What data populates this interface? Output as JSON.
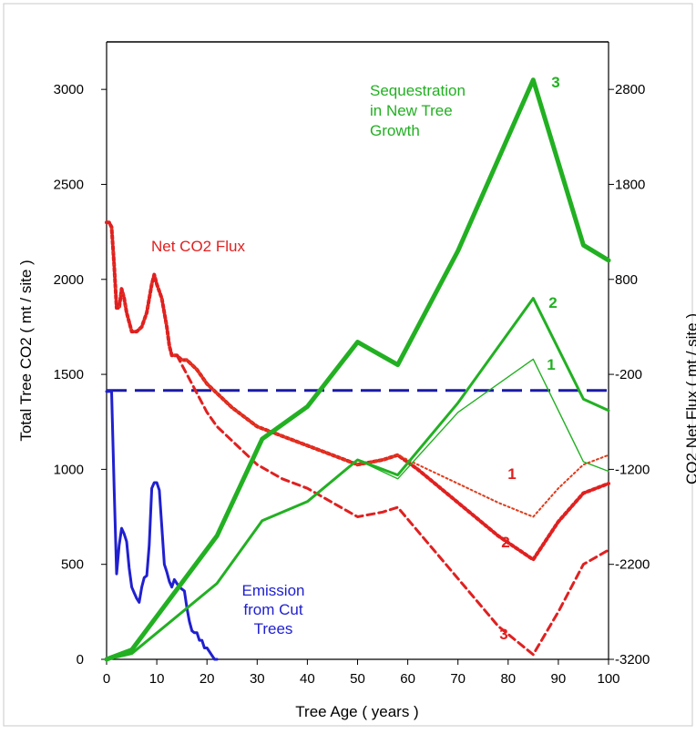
{
  "chart_data": {
    "type": "line",
    "xlabel": "Tree Age ( years )",
    "ylabel_left": "Total Tree CO2  ( mt / site )",
    "ylabel_right": "CO2 Net Flux  ( mt / site )",
    "x_ticks": [
      0,
      10,
      20,
      30,
      40,
      50,
      60,
      70,
      80,
      90,
      100
    ],
    "xlim": [
      0,
      100
    ],
    "ylim_left": [
      0,
      3250
    ],
    "y_ticks_left": [
      0,
      500,
      1000,
      1500,
      2000,
      2500,
      3000
    ],
    "ylim_right": [
      -3200,
      3300
    ],
    "y_ticks_right": [
      -3200,
      -2200,
      -1200,
      -200,
      800,
      1800,
      2800
    ],
    "reference_line": {
      "axis": "left",
      "y": 1415,
      "color": "#1a1aa8",
      "style": "dashed"
    },
    "annotations": [
      {
        "text_lines": [
          "Sequestration",
          "in New Tree",
          "Growth"
        ],
        "color": "#22b022"
      },
      {
        "text_lines": [
          "Net CO2 Flux"
        ],
        "color": "#e02020"
      },
      {
        "text_lines": [
          "Emission",
          "from Cut",
          "Trees"
        ],
        "color": "#2020d0"
      }
    ],
    "series": [
      {
        "label": "3",
        "axis": "left",
        "color": "#22b022",
        "style": "solid-thick",
        "x": [
          0,
          5,
          22,
          31,
          40,
          50,
          58,
          70,
          85,
          95,
          100
        ],
        "y": [
          0,
          50,
          650,
          1160,
          1330,
          1670,
          1550,
          2150,
          3050,
          2180,
          2100
        ]
      },
      {
        "label": "2",
        "axis": "left",
        "color": "#22b022",
        "style": "solid",
        "x": [
          0,
          5,
          22,
          31,
          40,
          50,
          58,
          70,
          85,
          95,
          100
        ],
        "y": [
          0,
          30,
          400,
          730,
          830,
          1050,
          970,
          1350,
          1900,
          1370,
          1310
        ]
      },
      {
        "label": "1",
        "axis": "left",
        "color": "#22b022",
        "style": "solid-thin",
        "x": [
          0,
          5,
          22,
          31,
          40,
          50,
          58,
          70,
          85,
          95,
          100
        ],
        "y": [
          0,
          30,
          400,
          730,
          830,
          1050,
          950,
          1300,
          1580,
          1040,
          990
        ]
      },
      {
        "label": "Emission from Cut Trees",
        "axis": "left",
        "color": "#2020d0",
        "style": "solid",
        "x": [
          0,
          0.5,
          1,
          1.5,
          2,
          2.5,
          3,
          3.5,
          4,
          4.5,
          5,
          5.5,
          6,
          6.5,
          7,
          7.5,
          8,
          8.5,
          9,
          9.5,
          10,
          10.5,
          11,
          11.5,
          12,
          12.5,
          13,
          13.5,
          14,
          14.5,
          15,
          15.5,
          16,
          16.5,
          17,
          17.5,
          18,
          18.5,
          19,
          19.5,
          20,
          20.5,
          21,
          21.5,
          22
        ],
        "y": [
          1410,
          1410,
          1410,
          900,
          450,
          600,
          690,
          660,
          620,
          480,
          380,
          350,
          320,
          300,
          380,
          430,
          440,
          600,
          900,
          930,
          930,
          890,
          700,
          500,
          460,
          410,
          380,
          420,
          400,
          380,
          370,
          360,
          270,
          200,
          150,
          140,
          140,
          100,
          100,
          60,
          60,
          40,
          20,
          0,
          0
        ]
      },
      {
        "label": "Net CO2 Flux 1",
        "axis": "right",
        "color": "#e03c1c",
        "style": "dotted-thin",
        "x": [
          0,
          0.5,
          1,
          1.5,
          2,
          2.5,
          3,
          3.5,
          4,
          5,
          6,
          7,
          8,
          9,
          9.5,
          10,
          11,
          12,
          12.5,
          13,
          14,
          15,
          16,
          17,
          18,
          20,
          22,
          25,
          30,
          35,
          40,
          45,
          50,
          55,
          58,
          62,
          70,
          78,
          85,
          90,
          95,
          100
        ],
        "y": [
          1400,
          1400,
          1350,
          950,
          500,
          500,
          700,
          600,
          450,
          250,
          250,
          300,
          450,
          750,
          850,
          750,
          600,
          300,
          100,
          0,
          0,
          -50,
          -50,
          -100,
          -150,
          -300,
          -400,
          -550,
          -750,
          -850,
          -950,
          -1050,
          -1150,
          -1100,
          -1050,
          -1150,
          -1350,
          -1550,
          -1700,
          -1400,
          -1150,
          -1050
        ]
      },
      {
        "label": "Net CO2 Flux 2",
        "axis": "right",
        "color": "#e02020",
        "style": "dotted-thick",
        "x": [
          0,
          0.5,
          1,
          1.5,
          2,
          2.5,
          3,
          3.5,
          4,
          5,
          6,
          7,
          8,
          9,
          9.5,
          10,
          11,
          12,
          12.5,
          13,
          14,
          15,
          16,
          17,
          18,
          20,
          22,
          25,
          30,
          35,
          40,
          45,
          50,
          55,
          58,
          62,
          70,
          78,
          85,
          90,
          95,
          100
        ],
        "y": [
          1400,
          1400,
          1350,
          950,
          500,
          500,
          700,
          600,
          450,
          250,
          250,
          300,
          450,
          750,
          850,
          750,
          600,
          300,
          100,
          0,
          0,
          -50,
          -50,
          -100,
          -150,
          -300,
          -400,
          -550,
          -750,
          -850,
          -950,
          -1050,
          -1150,
          -1100,
          -1050,
          -1200,
          -1550,
          -1900,
          -2150,
          -1750,
          -1450,
          -1350
        ]
      },
      {
        "label": "Net CO2 Flux 3",
        "axis": "right",
        "color": "#e02020",
        "style": "dashed",
        "x": [
          0,
          0.5,
          1,
          1.5,
          2,
          2.5,
          3,
          3.5,
          4,
          5,
          6,
          7,
          8,
          9,
          9.5,
          10,
          11,
          12,
          12.5,
          13,
          14,
          15,
          16,
          17,
          18,
          20,
          22,
          25,
          30,
          35,
          40,
          45,
          50,
          55,
          58,
          62,
          70,
          78,
          85,
          90,
          95,
          100
        ],
        "y": [
          1400,
          1400,
          1350,
          950,
          500,
          500,
          700,
          600,
          450,
          250,
          250,
          300,
          450,
          750,
          850,
          750,
          600,
          300,
          100,
          0,
          0,
          -100,
          -200,
          -300,
          -400,
          -600,
          -750,
          -900,
          -1150,
          -1300,
          -1400,
          -1550,
          -1700,
          -1650,
          -1600,
          -1850,
          -2350,
          -2850,
          -3150,
          -2700,
          -2200,
          -2050
        ]
      }
    ],
    "series_labels": [
      {
        "text": "3",
        "color": "#22b022"
      },
      {
        "text": "2",
        "color": "#22b022"
      },
      {
        "text": "1",
        "color": "#22b022"
      },
      {
        "text": "1",
        "color": "#e02020"
      },
      {
        "text": "2",
        "color": "#e02020"
      },
      {
        "text": "3",
        "color": "#e02020"
      }
    ]
  }
}
